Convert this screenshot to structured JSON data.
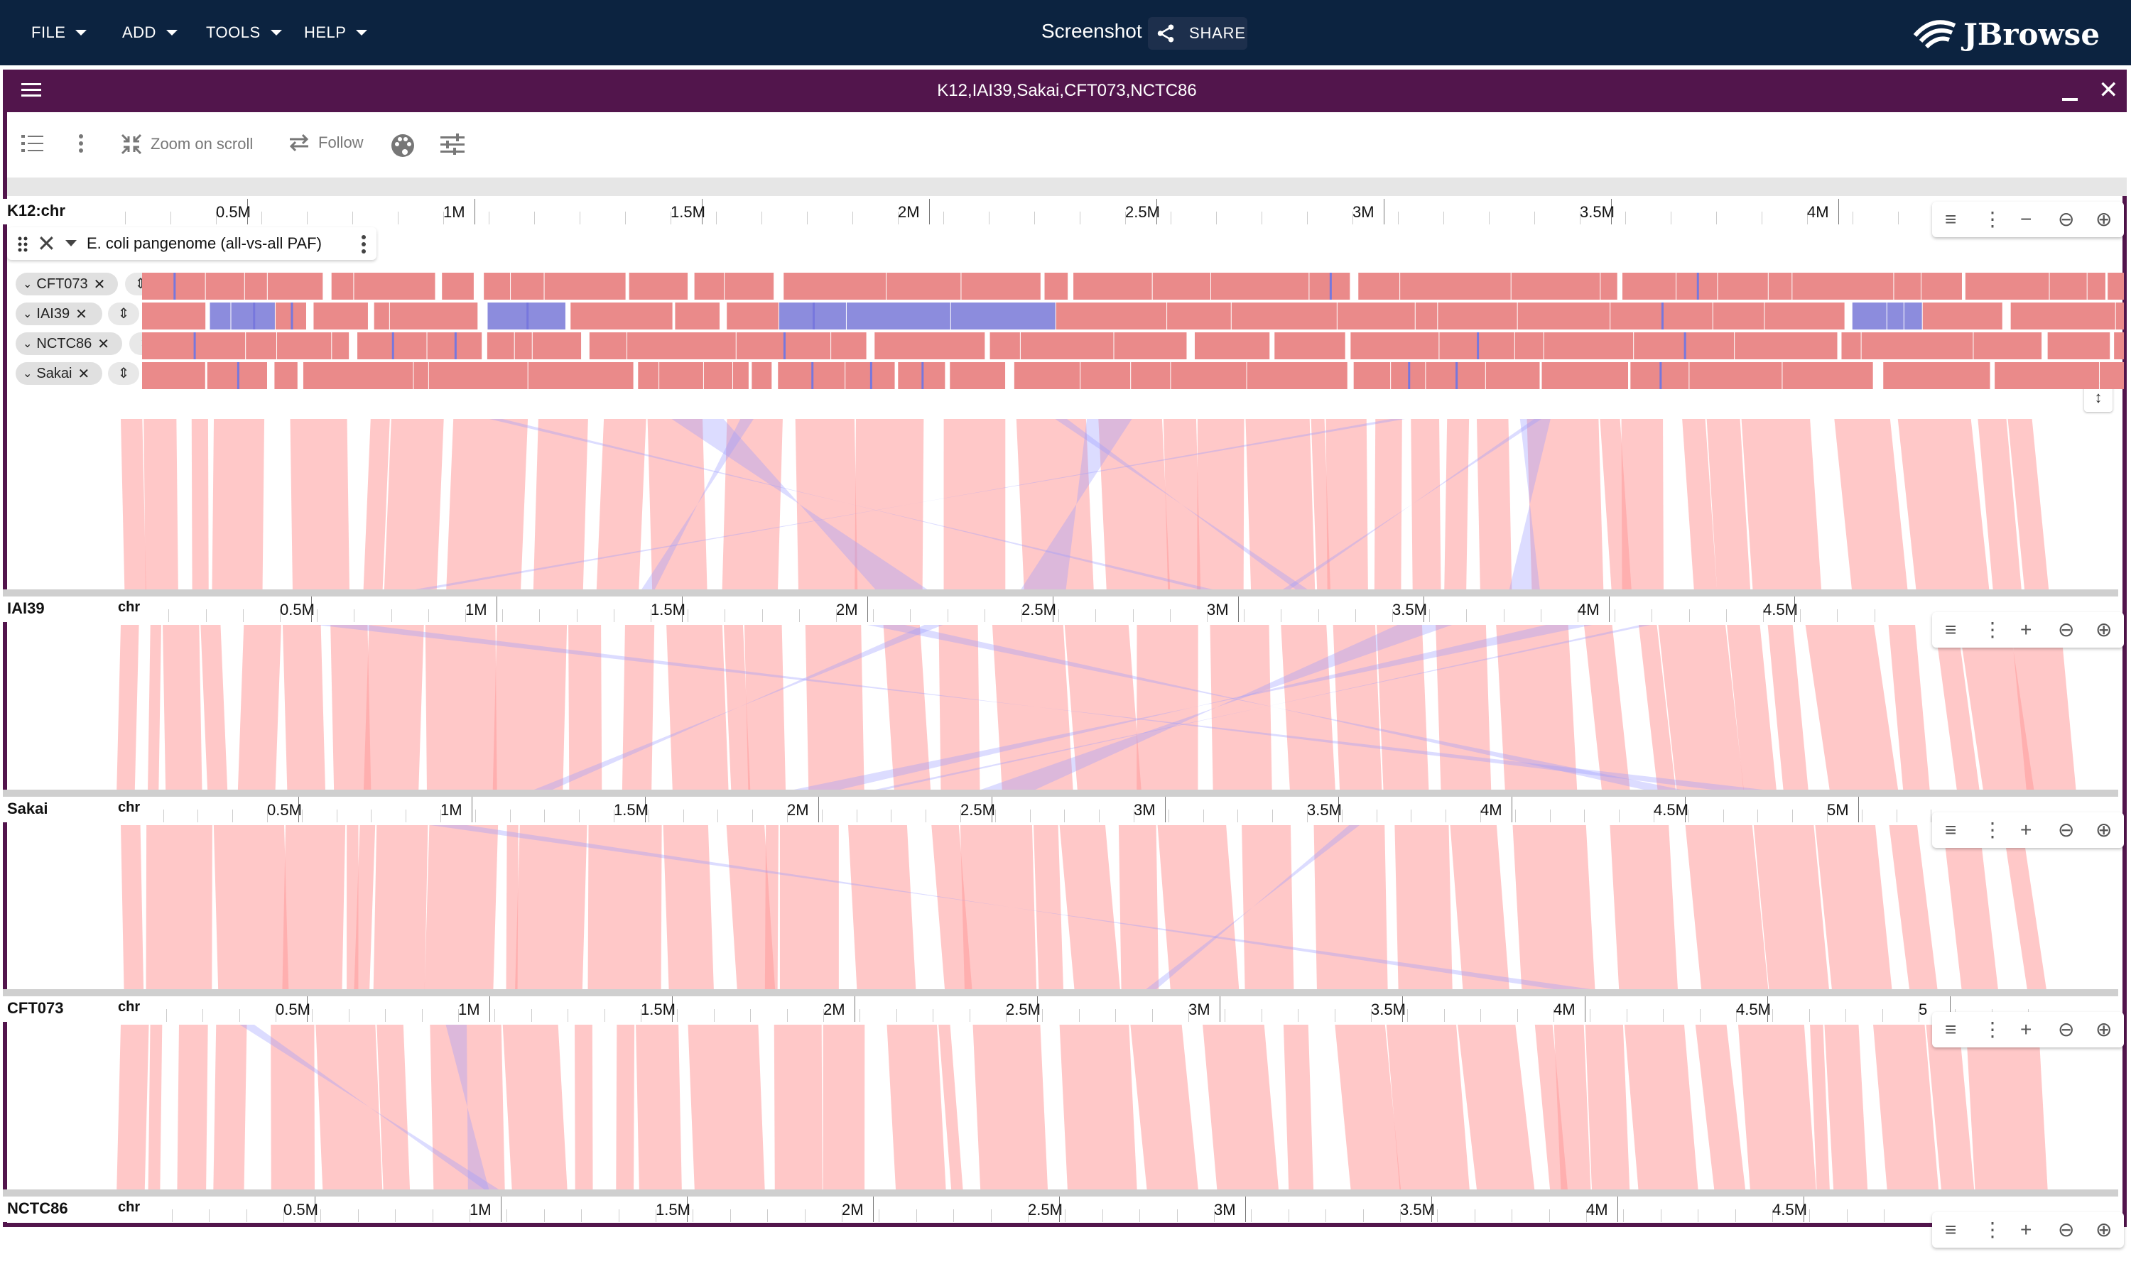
{
  "appbar": {
    "menus": [
      "FILE",
      "ADD",
      "TOOLS",
      "HELP"
    ],
    "session_title": "Screenshot",
    "share_label": "SHARE",
    "logo_text": "JBrowse"
  },
  "view": {
    "title": "K12,IAI39,Sakai,CFT073,NCTC86"
  },
  "toolbar": {
    "zoom_on_scroll": "Zoom on scroll",
    "follow": "Follow"
  },
  "track": {
    "name": "E. coli pangenome (all-vs-all PAF)",
    "subtracks": [
      "CFT073",
      "IAI39",
      "NCTC86",
      "Sakai"
    ]
  },
  "rows": [
    {
      "assembly": "K12:chr",
      "chr": "",
      "ticks": [
        "0.5M",
        "1M",
        "1.5M",
        "2M",
        "2.5M",
        "3M",
        "3.5M",
        "4M"
      ]
    },
    {
      "assembly": "IAI39",
      "chr": "chr",
      "ticks": [
        "0.5M",
        "1M",
        "1.5M",
        "2M",
        "2.5M",
        "3M",
        "3.5M",
        "4M",
        "4.5M"
      ]
    },
    {
      "assembly": "Sakai",
      "chr": "chr",
      "ticks": [
        "0.5M",
        "1M",
        "1.5M",
        "2M",
        "2.5M",
        "3M",
        "3.5M",
        "4M",
        "4.5M",
        "5M"
      ]
    },
    {
      "assembly": "CFT073",
      "chr": "chr",
      "ticks": [
        "0.5M",
        "1M",
        "1.5M",
        "2M",
        "2.5M",
        "3M",
        "3.5M",
        "4M",
        "4.5M",
        "5"
      ]
    },
    {
      "assembly": "NCTC86",
      "chr": "chr",
      "ticks": [
        "0.5M",
        "1M",
        "1.5M",
        "2M",
        "2.5M",
        "3M",
        "3.5M",
        "4M",
        "4.5M"
      ]
    }
  ],
  "colors": {
    "appbar": "#0c2340",
    "view_frame": "#52154c",
    "synteny_forward": "#ff9a9a",
    "synteny_inverted": "#9a9aff"
  }
}
